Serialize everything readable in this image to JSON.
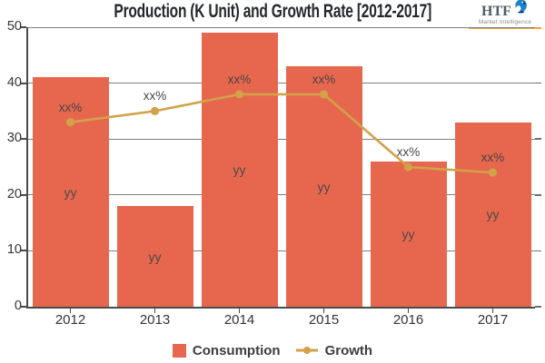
{
  "header": {
    "title": "Production (K Unit) and Growth Rate [2012-2017]"
  },
  "logo": {
    "name": "HTF",
    "tagline": "Market Intelligence",
    "accent_color": "#F2A53C",
    "icon_color": "#1E82C8",
    "icon_dark_color": "#0C3B66"
  },
  "chart_data": {
    "type": "bar",
    "title": "Production (K Unit) and Growth Rate [2012-2017]",
    "categories": [
      "2012",
      "2013",
      "2014",
      "2015",
      "2016",
      "2017"
    ],
    "series": [
      {
        "name": "Consumption",
        "type": "bar",
        "values": [
          41,
          18,
          49,
          43,
          26,
          33
        ],
        "value_label": "yy",
        "color": "#E7674E"
      },
      {
        "name": "Growth",
        "type": "line",
        "values": [
          33,
          35,
          38,
          38,
          25,
          24
        ],
        "point_label": "xx%",
        "color": "#D2A149"
      }
    ],
    "xlabel": "",
    "ylabel": "",
    "ylim": [
      0,
      50
    ],
    "y_ticks": [
      0,
      10,
      20,
      30,
      40,
      50
    ],
    "grid": true,
    "legend_position": "bottom"
  }
}
